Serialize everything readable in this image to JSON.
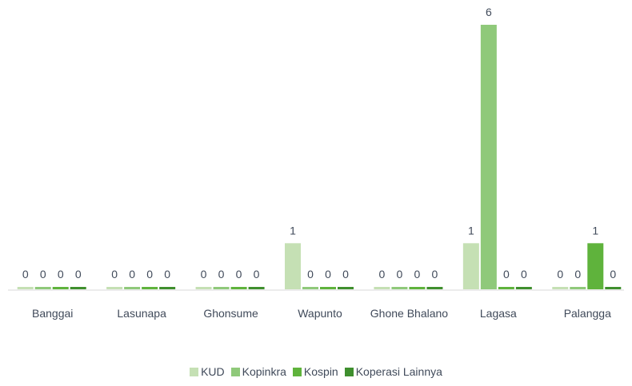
{
  "chart_data": {
    "type": "bar",
    "categories": [
      "Banggai",
      "Lasunapa",
      "Ghonsume",
      "Wapunto",
      "Ghone Bhalano",
      "Lagasa",
      "Palangga"
    ],
    "series": [
      {
        "name": "KUD",
        "color": "#c5e0b4",
        "values": [
          0,
          0,
          0,
          1,
          0,
          1,
          0
        ]
      },
      {
        "name": "Kopinkra",
        "color": "#8fc97a",
        "values": [
          0,
          0,
          0,
          0,
          0,
          6,
          0
        ]
      },
      {
        "name": "Kospin",
        "color": "#5fb33c",
        "values": [
          0,
          0,
          0,
          0,
          0,
          0,
          1
        ]
      },
      {
        "name": "Koperasi Lainnya",
        "color": "#3f8f2e",
        "values": [
          0,
          0,
          0,
          0,
          0,
          0,
          0
        ]
      }
    ]
  }
}
